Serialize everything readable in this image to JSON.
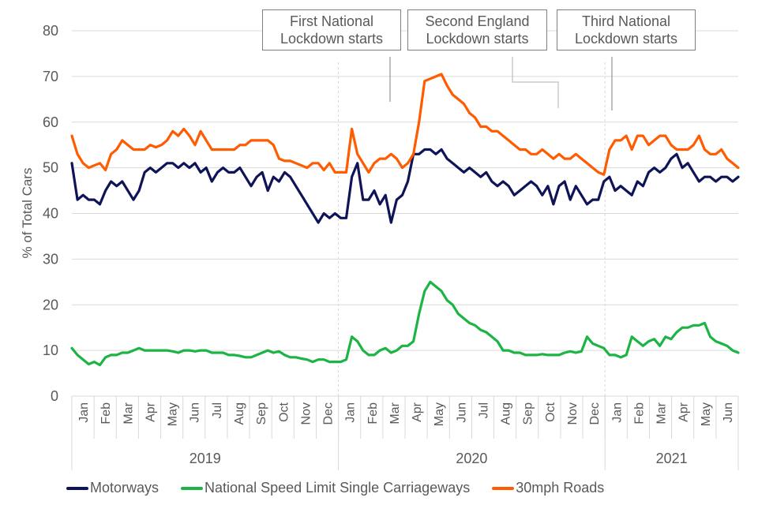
{
  "chart_data": {
    "type": "line",
    "title": "",
    "ylabel": "% of Total Cars",
    "xlabel": "",
    "ylim": [
      0,
      80
    ],
    "yticks": [
      0,
      10,
      20,
      30,
      40,
      50,
      60,
      70,
      80
    ],
    "grid": true,
    "legend_position": "bottom",
    "x_months": [
      "Jan",
      "Feb",
      "Mar",
      "Apr",
      "May",
      "Jun",
      "Jul",
      "Aug",
      "Sep",
      "Oct",
      "Nov",
      "Dec",
      "Jan",
      "Feb",
      "Mar",
      "Apr",
      "May",
      "Jun",
      "Jul",
      "Aug",
      "Sep",
      "Oct",
      "Nov",
      "Dec",
      "Jan",
      "Feb",
      "Mar",
      "Apr",
      "May",
      "Jun"
    ],
    "x_years": [
      {
        "label": "2019",
        "months": 12
      },
      {
        "label": "2020",
        "months": 12
      },
      {
        "label": "2021",
        "months": 6
      }
    ],
    "samples_per_month": 4,
    "series": [
      {
        "name": "Motorways",
        "color": "#0e1457",
        "values": [
          51,
          43,
          44,
          43,
          43,
          42,
          45,
          47,
          46,
          47,
          45,
          43,
          45,
          49,
          50,
          49,
          50,
          51,
          51,
          50,
          51,
          50,
          51,
          49,
          50,
          47,
          49,
          50,
          49,
          49,
          50,
          48,
          46,
          48,
          49,
          45,
          48,
          47,
          49,
          48,
          46,
          44,
          42,
          40,
          38,
          40,
          39,
          40,
          39,
          39,
          48,
          51,
          43,
          43,
          45,
          42,
          44,
          38,
          43,
          44,
          47,
          53,
          53,
          54,
          54,
          53,
          54,
          52,
          51,
          50,
          49,
          50,
          49,
          48,
          49,
          47,
          46,
          47,
          46,
          44,
          45,
          46,
          47,
          46,
          44,
          46,
          42,
          46,
          47,
          43,
          46,
          44,
          42,
          43,
          43,
          47,
          48,
          45,
          46,
          45,
          44,
          47,
          46,
          49,
          50,
          49,
          50,
          52,
          53,
          50,
          51,
          49,
          47,
          48,
          48,
          47,
          48,
          48,
          47,
          48
        ]
      },
      {
        "name": "National Speed Limit Single Carriageways",
        "color": "#1db446",
        "values": [
          10.5,
          9,
          8,
          7,
          7.5,
          6.8,
          8.5,
          9,
          9,
          9.5,
          9.5,
          10,
          10.5,
          10,
          10,
          10,
          10,
          10,
          9.8,
          9.5,
          10,
          10,
          9.8,
          10,
          10,
          9.5,
          9.5,
          9.5,
          9,
          9,
          8.8,
          8.5,
          8.5,
          9,
          9.5,
          10,
          9.5,
          9.8,
          9,
          8.5,
          8.5,
          8.2,
          8,
          7.5,
          8,
          8,
          7.5,
          7.5,
          7.5,
          8,
          13,
          12,
          10,
          9,
          9,
          10,
          10.5,
          9.5,
          10,
          11,
          11,
          12,
          18,
          23,
          25,
          24,
          23,
          21,
          20,
          18,
          17,
          16,
          15.5,
          14.5,
          14,
          13,
          12,
          10,
          10,
          9.5,
          9.5,
          9,
          9,
          9,
          9.2,
          9,
          9,
          9,
          9.5,
          9.8,
          9.5,
          9.8,
          13,
          11.5,
          11,
          10.5,
          9,
          9,
          8.5,
          9,
          13,
          12,
          11,
          12,
          12.5,
          11,
          13,
          12.5,
          14,
          15,
          15,
          15.5,
          15.5,
          16,
          13,
          12,
          11.5,
          11,
          10,
          9.5
        ]
      },
      {
        "name": "30mph Roads",
        "color": "#ff5b00",
        "values": [
          57,
          53,
          51,
          50,
          50.5,
          51,
          49.5,
          53,
          54,
          56,
          55,
          54,
          54,
          54,
          55,
          54.5,
          55,
          56,
          58,
          57,
          58.5,
          57,
          55,
          58,
          56,
          54,
          54,
          54,
          54,
          54,
          55,
          55,
          56,
          56,
          56,
          56,
          55,
          52,
          51.5,
          51.5,
          51,
          50.5,
          50,
          51,
          51,
          49.5,
          51,
          49,
          49,
          49,
          58.5,
          53,
          51,
          49,
          51,
          52,
          52,
          53,
          52,
          50,
          51,
          53,
          60,
          69,
          69.5,
          70,
          70.5,
          68,
          66,
          65,
          64,
          62,
          61,
          59,
          59,
          58,
          58,
          57,
          56,
          55,
          54,
          54,
          53,
          53,
          54,
          53,
          52,
          53,
          52,
          52,
          53,
          52,
          51,
          50,
          49,
          48.5,
          54,
          56,
          56,
          57,
          54,
          57,
          57,
          55,
          56,
          57,
          57,
          55,
          54,
          54,
          54,
          55,
          57,
          54,
          53,
          53,
          54,
          52,
          51,
          50
        ]
      }
    ],
    "annotations": [
      {
        "text_line1": "First National",
        "text_line2": "Lockdown starts",
        "month_index": 14.9
      },
      {
        "text_line1": "Second England",
        "text_line2": "Lockdown starts",
        "month_index": 22.0
      },
      {
        "text_line1": "Third National",
        "text_line2": "Lockdown starts",
        "month_index": 24.2
      }
    ]
  },
  "legend": [
    {
      "label": "Motorways",
      "color": "#0e1457"
    },
    {
      "label": "National Speed Limit Single Carriageways",
      "color": "#1db446"
    },
    {
      "label": "30mph Roads",
      "color": "#ff5b00"
    }
  ]
}
